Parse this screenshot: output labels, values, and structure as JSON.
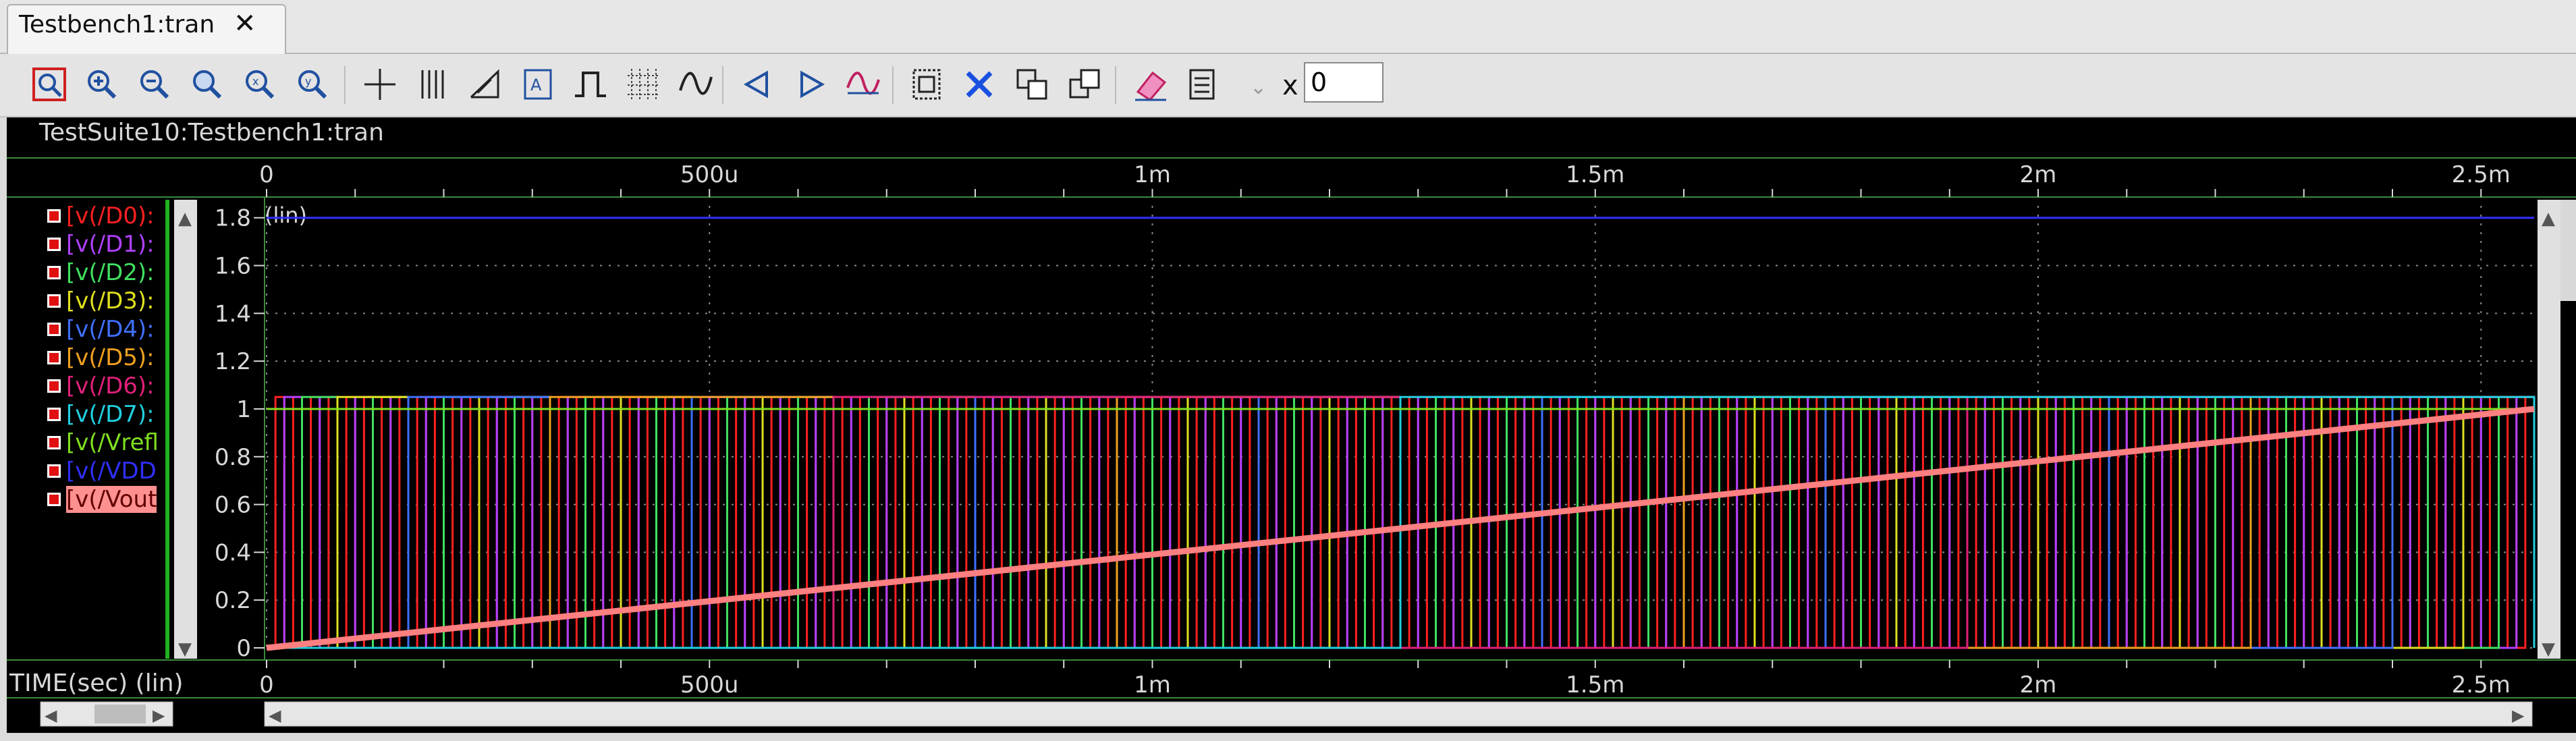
{
  "tab": {
    "label": "Testbench1:tran"
  },
  "toolbar": {
    "icons": [
      "zoom-select-icon",
      "zoom-in-icon",
      "zoom-out-icon",
      "zoom-fit-icon",
      "zoom-x-icon",
      "zoom-y-icon",
      "crosshair-icon",
      "vertical-markers-icon",
      "slope-icon",
      "label-icon",
      "pulse-icon",
      "grid-icon",
      "waveform-icon",
      "prev-icon",
      "next-icon",
      "marker-waveform-icon",
      "strip-icon",
      "delete-icon",
      "copy-icon",
      "paste-icon",
      "eraser-icon",
      "settings-icon"
    ],
    "x_label": "x",
    "x_value": "0"
  },
  "plot": {
    "title": "TestSuite10:Testbench1:tran",
    "y_scale_label": "(lin)",
    "x_axis_title": "TIME(sec) (lin)"
  },
  "legend": [
    {
      "label": "[v(/D0):",
      "color": "#ff2020"
    },
    {
      "label": "[v(/D1):",
      "color": "#b040ff"
    },
    {
      "label": "[v(/D2):",
      "color": "#40e060"
    },
    {
      "label": "[v(/D3):",
      "color": "#e0e020"
    },
    {
      "label": "[v(/D4):",
      "color": "#4070ff"
    },
    {
      "label": "[v(/D5):",
      "color": "#f0a020"
    },
    {
      "label": "[v(/D6):",
      "color": "#e0207a"
    },
    {
      "label": "[v(/D7):",
      "color": "#20d0e0"
    },
    {
      "label": "[v(/Vrefl",
      "color": "#80e020"
    },
    {
      "label": "[v(/VDD",
      "color": "#3030ff"
    },
    {
      "label": "[v(/Vout",
      "color": "#ff8080"
    }
  ],
  "chart_data": {
    "type": "line",
    "x_ticks": [
      "0",
      "500u",
      "1m",
      "1.5m",
      "2m",
      "2.5m"
    ],
    "y_ticks": [
      "0",
      "0.2",
      "0.4",
      "0.6",
      "0.8",
      "1",
      "1.2",
      "1.4",
      "1.6",
      "1.8"
    ],
    "xlim": [
      0,
      0.00256
    ],
    "ylim": [
      0,
      1.85
    ],
    "grid": true,
    "series": [
      {
        "name": "v(/D0)",
        "kind": "digital",
        "high": 1.05,
        "period": 2e-05
      },
      {
        "name": "v(/D1)",
        "kind": "digital",
        "high": 1.05,
        "period": 4e-05
      },
      {
        "name": "v(/D2)",
        "kind": "digital",
        "high": 1.05,
        "period": 8e-05
      },
      {
        "name": "v(/D3)",
        "kind": "digital",
        "high": 1.05,
        "period": 0.00016
      },
      {
        "name": "v(/D4)",
        "kind": "digital",
        "high": 1.05,
        "period": 0.00032
      },
      {
        "name": "v(/D5)",
        "kind": "digital",
        "high": 1.05,
        "period": 0.00064
      },
      {
        "name": "v(/D6)",
        "kind": "digital",
        "high": 1.05,
        "period": 0.00128
      },
      {
        "name": "v(/D7)",
        "kind": "digital",
        "high": 1.05,
        "period": 0.00256
      },
      {
        "name": "v(/Vrefl",
        "x": [
          0,
          0.00256
        ],
        "y": [
          1.0,
          1.0
        ]
      },
      {
        "name": "v(/VDD",
        "x": [
          0,
          0.00256
        ],
        "y": [
          1.8,
          1.8
        ]
      },
      {
        "name": "v(/Vout",
        "x": [
          0,
          0.00256
        ],
        "y": [
          0,
          1.0
        ]
      }
    ]
  }
}
